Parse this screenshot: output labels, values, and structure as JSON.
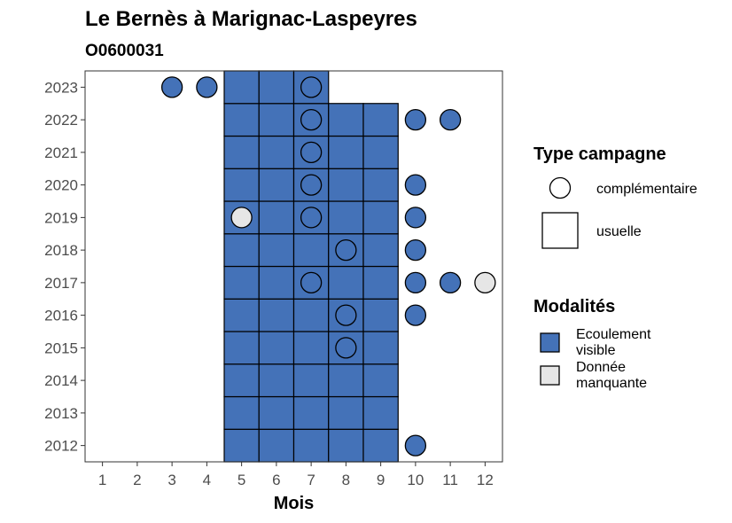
{
  "chart_data": {
    "type": "heatmap",
    "title": "Le Bernès à Marignac-Laspeyres",
    "subtitle": "O0600031",
    "xlabel": "Mois",
    "ylabel": "",
    "x_ticks": [
      "1",
      "2",
      "3",
      "4",
      "5",
      "6",
      "7",
      "8",
      "9",
      "10",
      "11",
      "12"
    ],
    "y_ticks": [
      "2012",
      "2013",
      "2014",
      "2015",
      "2016",
      "2017",
      "2018",
      "2019",
      "2020",
      "2021",
      "2022",
      "2023"
    ],
    "xlim": [
      0.5,
      12.5
    ],
    "ylim": [
      2011.5,
      2023.5
    ],
    "grid": false,
    "legend_position": "right",
    "colors": {
      "ecoulement": "#4472b8",
      "manquante": "#e6e6e6"
    },
    "legend": {
      "type_title": "Type campagne",
      "type_items": [
        {
          "shape": "circle",
          "label": "complémentaire"
        },
        {
          "shape": "square",
          "label": "usuelle"
        }
      ],
      "mod_title": "Modalités",
      "mod_items": [
        {
          "key": "ecoulement",
          "label_lines": [
            "Ecoulement",
            "visible"
          ]
        },
        {
          "key": "manquante",
          "label_lines": [
            "Donnée",
            "manquante"
          ]
        }
      ]
    },
    "usuelle": [
      {
        "year": 2012,
        "months": [
          5,
          6,
          7,
          8,
          9
        ],
        "modalite": "ecoulement"
      },
      {
        "year": 2013,
        "months": [
          5,
          6,
          7,
          8,
          9
        ],
        "modalite": "ecoulement"
      },
      {
        "year": 2014,
        "months": [
          5,
          6,
          7,
          8,
          9
        ],
        "modalite": "ecoulement"
      },
      {
        "year": 2015,
        "months": [
          5,
          6,
          7,
          8,
          9
        ],
        "modalite": "ecoulement"
      },
      {
        "year": 2016,
        "months": [
          5,
          6,
          7,
          8,
          9
        ],
        "modalite": "ecoulement"
      },
      {
        "year": 2017,
        "months": [
          5,
          6,
          7,
          8,
          9
        ],
        "modalite": "ecoulement"
      },
      {
        "year": 2018,
        "months": [
          5,
          6,
          7,
          8,
          9
        ],
        "modalite": "ecoulement"
      },
      {
        "year": 2019,
        "months": [
          5,
          6,
          7,
          8,
          9
        ],
        "modalite": "ecoulement"
      },
      {
        "year": 2020,
        "months": [
          5,
          6,
          7,
          8,
          9
        ],
        "modalite": "ecoulement"
      },
      {
        "year": 2021,
        "months": [
          5,
          6,
          7,
          8,
          9
        ],
        "modalite": "ecoulement"
      },
      {
        "year": 2022,
        "months": [
          5,
          6,
          7,
          8,
          9
        ],
        "modalite": "ecoulement"
      },
      {
        "year": 2023,
        "months": [
          5,
          6,
          7
        ],
        "modalite": "ecoulement"
      }
    ],
    "complementaire": [
      {
        "year": 2023,
        "month": 3,
        "modalite": "ecoulement"
      },
      {
        "year": 2023,
        "month": 4,
        "modalite": "ecoulement"
      },
      {
        "year": 2023,
        "month": 7,
        "modalite": "ecoulement"
      },
      {
        "year": 2022,
        "month": 7,
        "modalite": "ecoulement"
      },
      {
        "year": 2022,
        "month": 10,
        "modalite": "ecoulement"
      },
      {
        "year": 2022,
        "month": 11,
        "modalite": "ecoulement"
      },
      {
        "year": 2021,
        "month": 7,
        "modalite": "ecoulement"
      },
      {
        "year": 2020,
        "month": 7,
        "modalite": "ecoulement"
      },
      {
        "year": 2020,
        "month": 10,
        "modalite": "ecoulement"
      },
      {
        "year": 2019,
        "month": 5,
        "modalite": "manquante"
      },
      {
        "year": 2019,
        "month": 7,
        "modalite": "ecoulement"
      },
      {
        "year": 2019,
        "month": 10,
        "modalite": "ecoulement"
      },
      {
        "year": 2018,
        "month": 8,
        "modalite": "ecoulement"
      },
      {
        "year": 2018,
        "month": 10,
        "modalite": "ecoulement"
      },
      {
        "year": 2017,
        "month": 7,
        "modalite": "ecoulement"
      },
      {
        "year": 2017,
        "month": 10,
        "modalite": "ecoulement"
      },
      {
        "year": 2017,
        "month": 11,
        "modalite": "ecoulement"
      },
      {
        "year": 2017,
        "month": 12,
        "modalite": "manquante"
      },
      {
        "year": 2016,
        "month": 8,
        "modalite": "ecoulement"
      },
      {
        "year": 2016,
        "month": 10,
        "modalite": "ecoulement"
      },
      {
        "year": 2015,
        "month": 8,
        "modalite": "ecoulement"
      },
      {
        "year": 2012,
        "month": 10,
        "modalite": "ecoulement"
      }
    ]
  }
}
